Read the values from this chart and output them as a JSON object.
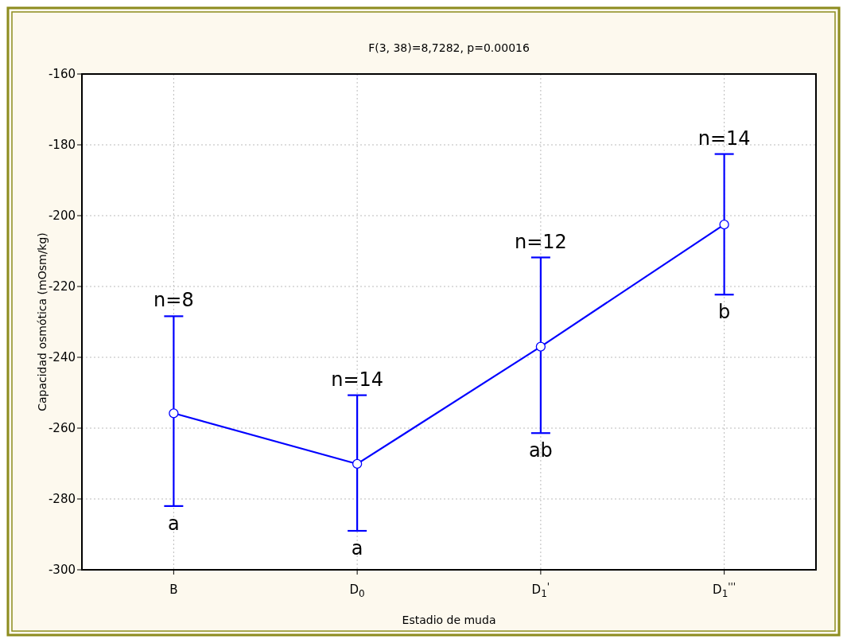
{
  "chart_data": {
    "type": "line",
    "title": "F(3, 38)=8,7282, p=0.00016",
    "xlabel": "Estadio de muda",
    "ylabel": "Capacidad osmótica  (mOsm/kg)",
    "categories": [
      "B",
      "D$_{0}$",
      "D$_{1}$$^{'}$",
      "D$_{1}$$^{'''}$"
    ],
    "series": [
      {
        "color": "#0000ff",
        "values": [
          -255.8,
          -270.1,
          -237.0,
          -202.5
        ],
        "errors": [
          [
            -282.0,
            -228.4
          ],
          [
            -289.0,
            -250.7
          ],
          [
            -261.4,
            -211.8
          ],
          [
            -222.3,
            -182.6
          ]
        ]
      }
    ],
    "ylim": [
      -300,
      -160
    ],
    "yticks": [
      -300,
      -280,
      -260,
      -240,
      -220,
      -200,
      -180,
      -160
    ],
    "grid": true,
    "marker": "circle",
    "line_style": "solid",
    "annotations": [
      {
        "text": "n=8",
        "x": "B",
        "y": -228.4
      },
      {
        "text": "n=14",
        "x": "D$_{0}$",
        "y": -250.7
      },
      {
        "text": "n=12",
        "x": "D$_{1}$$^{'}$",
        "y": -211.8
      },
      {
        "text": "n=14",
        "x": "D$_{1}$$^{'''}$",
        "y": -182.6
      },
      {
        "text": "a",
        "x": "B",
        "y": -282.0
      },
      {
        "text": "a",
        "x": "D$_{0}$",
        "y": -289.0
      },
      {
        "text": "ab",
        "x": "D$_{1}$$^{'}$",
        "y": -261.4
      },
      {
        "text": "b",
        "x": "D$_{1}$$^{'''}$",
        "y": -222.3
      }
    ]
  }
}
